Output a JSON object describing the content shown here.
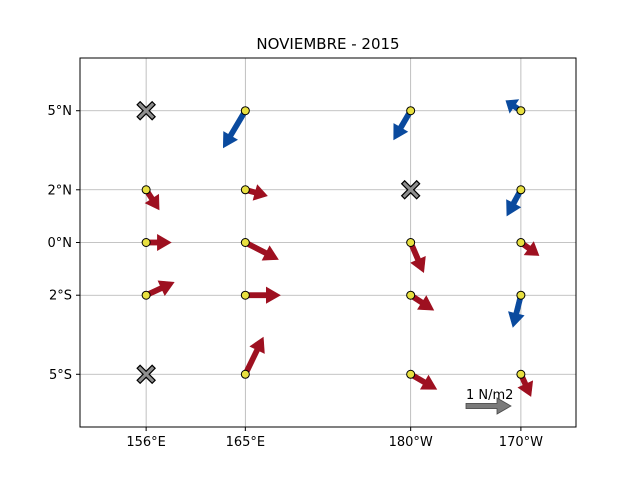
{
  "title": "NOVIEMBRE - 2015",
  "x_ticks": [
    {
      "lon": 156,
      "label": "156°E"
    },
    {
      "lon": 165,
      "label": "165°E"
    },
    {
      "lon": 180,
      "label": "180°W"
    },
    {
      "lon": 190,
      "label": "170°W"
    }
  ],
  "y_ticks": [
    {
      "lat": 5,
      "label": "5°N"
    },
    {
      "lat": 2,
      "label": "2°N"
    },
    {
      "lat": 0,
      "label": "0°N"
    },
    {
      "lat": -2,
      "label": "2°S"
    },
    {
      "lat": -5,
      "label": "5°S"
    }
  ],
  "reference": {
    "label": "1 N/m2",
    "magnitude": 1,
    "color": "#7a7a7a"
  },
  "colors": {
    "eastward": "#9e1020",
    "westward": "#0a4a9e",
    "missing": "#8f8f8f",
    "station": "#e8e040"
  },
  "chart_data": {
    "type": "quiver",
    "title": "NOVIEMBRE - 2015",
    "xlim": [
      150,
      195
    ],
    "ylim": [
      -7,
      7
    ],
    "grid": true,
    "stations": [
      {
        "lon": 156,
        "lat": 5,
        "status": "missing"
      },
      {
        "lon": 165,
        "lat": 5,
        "u": -0.22,
        "v": -0.37
      },
      {
        "lon": 180,
        "lat": 5,
        "u": -0.17,
        "v": -0.29
      },
      {
        "lon": 190,
        "lat": 5,
        "u": -0.15,
        "v": 0.1
      },
      {
        "lon": 156,
        "lat": 2,
        "u": 0.13,
        "v": -0.2
      },
      {
        "lon": 165,
        "lat": 2,
        "u": 0.22,
        "v": -0.06
      },
      {
        "lon": 180,
        "lat": 2,
        "status": "missing"
      },
      {
        "lon": 190,
        "lat": 2,
        "u": -0.14,
        "v": -0.26
      },
      {
        "lon": 156,
        "lat": 0,
        "u": 0.25,
        "v": 0.0
      },
      {
        "lon": 165,
        "lat": 0,
        "u": 0.33,
        "v": -0.17
      },
      {
        "lon": 180,
        "lat": 0,
        "u": 0.13,
        "v": -0.3
      },
      {
        "lon": 190,
        "lat": 0,
        "u": 0.18,
        "v": -0.13
      },
      {
        "lon": 156,
        "lat": -2,
        "u": 0.28,
        "v": 0.13
      },
      {
        "lon": 165,
        "lat": -2,
        "u": 0.35,
        "v": 0.0
      },
      {
        "lon": 180,
        "lat": -2,
        "u": 0.23,
        "v": -0.15
      },
      {
        "lon": 190,
        "lat": -2,
        "u": -0.08,
        "v": -0.32
      },
      {
        "lon": 156,
        "lat": -5,
        "status": "missing"
      },
      {
        "lon": 165,
        "lat": -5,
        "u": 0.18,
        "v": 0.37
      },
      {
        "lon": 180,
        "lat": -5,
        "u": 0.26,
        "v": -0.15
      },
      {
        "lon": 190,
        "lat": -5,
        "u": 0.1,
        "v": -0.22
      }
    ]
  }
}
